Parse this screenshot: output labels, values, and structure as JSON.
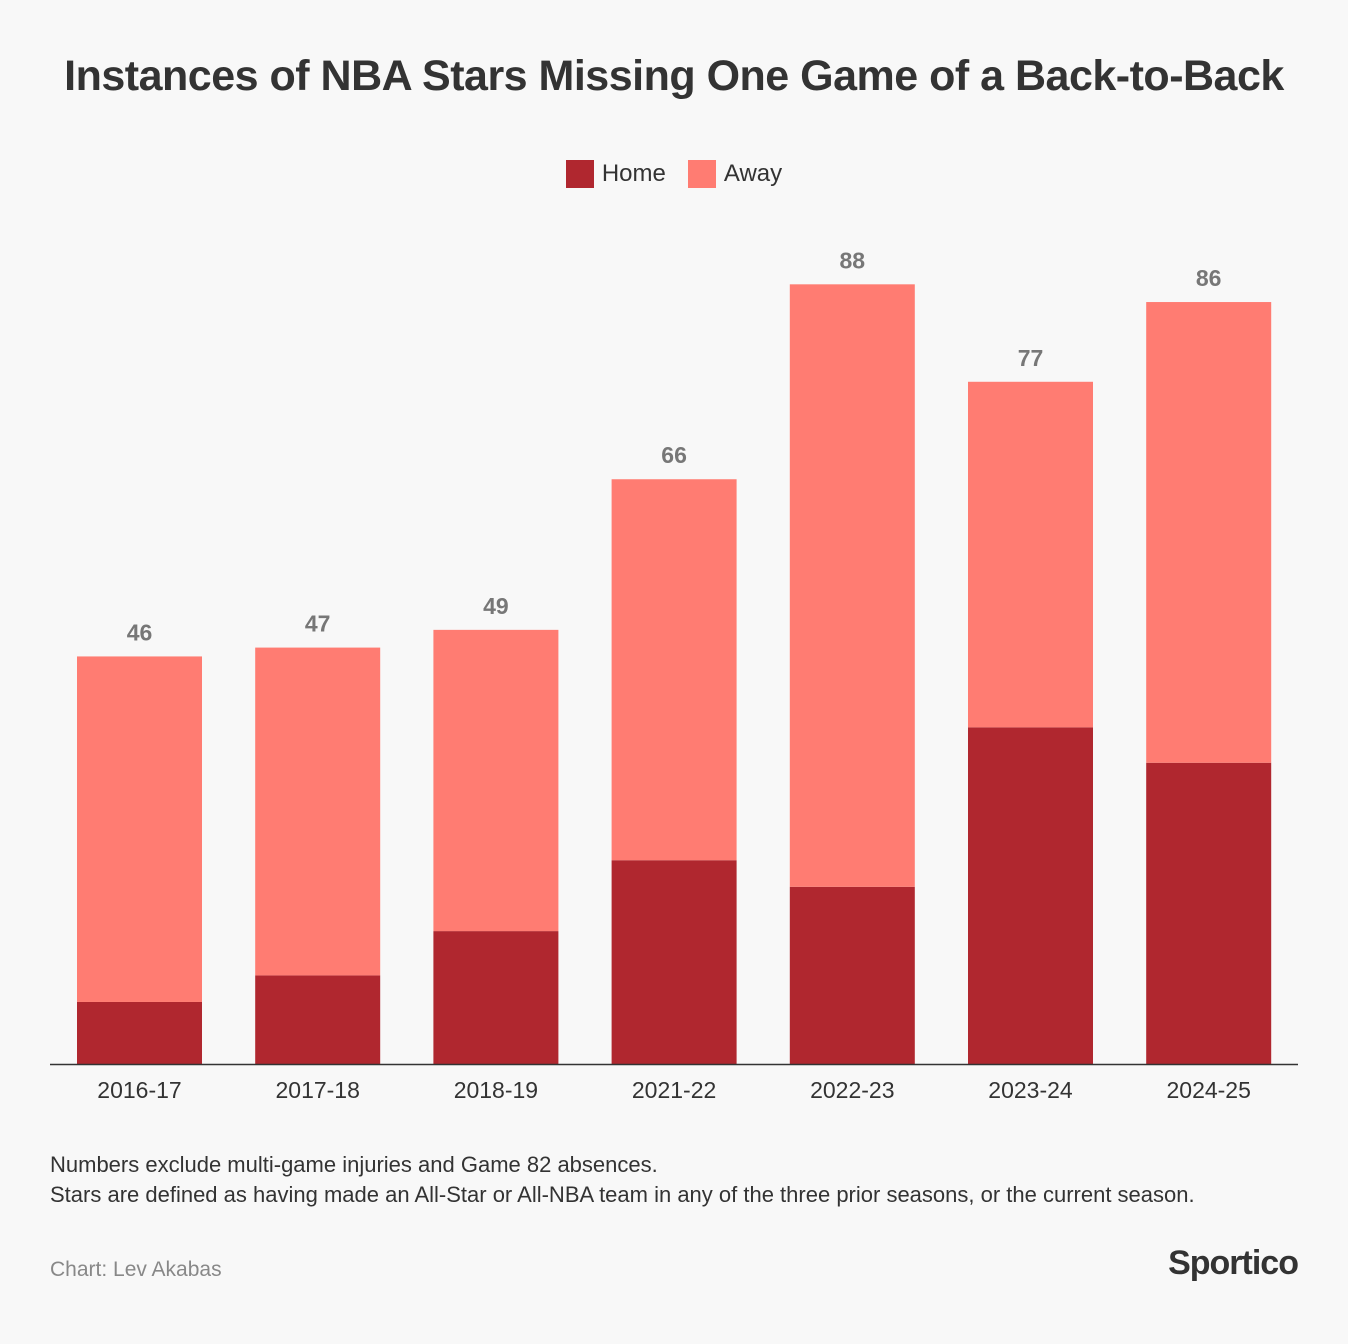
{
  "chart_data": {
    "type": "bar",
    "stacked": true,
    "title": "Instances of NBA Stars Missing One Game of a Back-to-Back",
    "categories": [
      "2016-17",
      "2017-18",
      "2018-19",
      "2021-22",
      "2022-23",
      "2023-24",
      "2024-25"
    ],
    "series": [
      {
        "name": "Home",
        "color": "#b0272f",
        "values": [
          7,
          10,
          15,
          23,
          20,
          38,
          34
        ]
      },
      {
        "name": "Away",
        "color": "#ff7c72",
        "values": [
          39,
          37,
          34,
          43,
          68,
          39,
          52
        ]
      }
    ],
    "totals": [
      "46",
      "47",
      "49",
      "66",
      "88",
      "77",
      "86"
    ],
    "ylim": [
      0,
      88
    ],
    "grid": false,
    "legend_position": "top-center"
  },
  "notes": [
    "Numbers exclude multi-game injuries and Game 82 absences.",
    "Stars are defined as having made an All-Star or All-NBA team in any of the three prior seasons, or the current season."
  ],
  "credit": "Chart: Lev Akabas",
  "brand": "Sportico",
  "colors": {
    "background": "#f8f8f8",
    "axis": "#333333",
    "total_label": "#777777"
  }
}
